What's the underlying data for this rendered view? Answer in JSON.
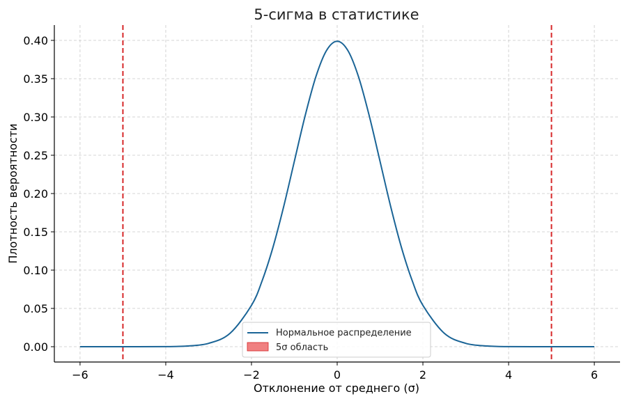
{
  "chart_data": {
    "type": "line",
    "title": "5-сигма в статистике",
    "xlabel": "Отклонение от среднего (σ)",
    "ylabel": "Плотность вероятности",
    "xlim": [
      -6.6,
      6.6
    ],
    "ylim": [
      -0.02,
      0.42
    ],
    "x_ticks": [
      -6,
      -4,
      -2,
      0,
      2,
      4,
      6
    ],
    "x_tick_labels": [
      "−6",
      "−4",
      "−2",
      "0",
      "2",
      "4",
      "6"
    ],
    "y_ticks": [
      0.0,
      0.05,
      0.1,
      0.15,
      0.2,
      0.25,
      0.3,
      0.35,
      0.4
    ],
    "y_tick_labels": [
      "0.00",
      "0.05",
      "0.10",
      "0.15",
      "0.20",
      "0.25",
      "0.30",
      "0.35",
      "0.40"
    ],
    "grid": true,
    "legend_position": "bottom-center",
    "series": [
      {
        "name": "Нормальное распределение",
        "color": "#1a6496",
        "x": [
          -6,
          -5,
          -4,
          -3.5,
          -3,
          -2.5,
          -2,
          -1.75,
          -1.5,
          -1.25,
          -1,
          -0.75,
          -0.5,
          -0.25,
          0,
          0.25,
          0.5,
          0.75,
          1,
          1.25,
          1.5,
          1.75,
          2,
          2.5,
          3,
          3.5,
          4,
          5,
          6
        ],
        "y": [
          0.0,
          0.0,
          0.0001,
          0.0009,
          0.0044,
          0.0175,
          0.054,
          0.0863,
          0.1295,
          0.1826,
          0.242,
          0.3011,
          0.3521,
          0.3867,
          0.3989,
          0.3867,
          0.3521,
          0.3011,
          0.242,
          0.1826,
          0.1295,
          0.0863,
          0.054,
          0.0175,
          0.0044,
          0.0009,
          0.0001,
          0.0,
          0.0
        ]
      }
    ],
    "vertical_lines": [
      {
        "x": -5,
        "color": "#d62728",
        "style": "dashed"
      },
      {
        "x": 5,
        "color": "#d62728",
        "style": "dashed"
      }
    ],
    "legend": [
      {
        "label": "Нормальное распределение",
        "kind": "line",
        "color": "#1a6496"
      },
      {
        "label": "5σ область",
        "kind": "patch",
        "color": "#f08080"
      }
    ]
  }
}
